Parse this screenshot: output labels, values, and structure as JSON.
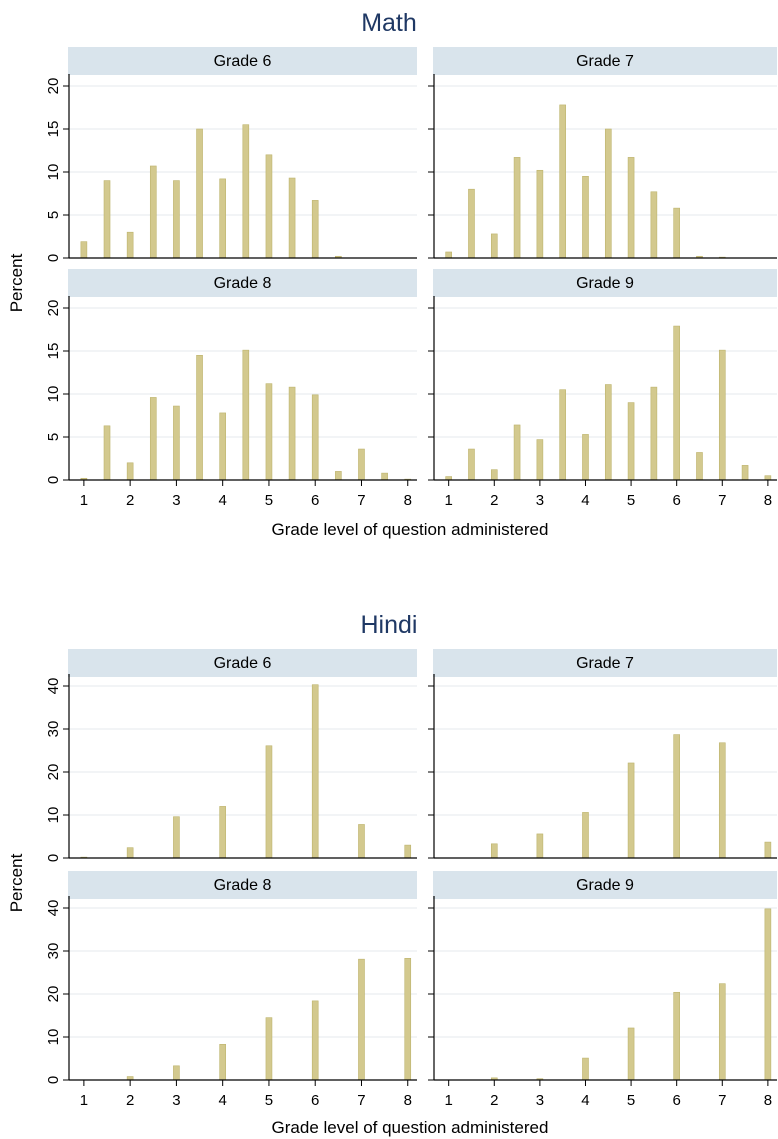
{
  "chart_data": [
    {
      "type": "bar",
      "title": "Math",
      "xlabel": "Grade level of question administered",
      "ylabel": "Percent",
      "ylim": [
        0,
        20
      ],
      "yticks": [
        0,
        5,
        10,
        15,
        20
      ],
      "xticks": [
        1,
        2,
        3,
        4,
        5,
        6,
        7,
        8
      ],
      "x": [
        1,
        1.5,
        2,
        2.5,
        3,
        3.5,
        4,
        4.5,
        5,
        5.5,
        6,
        6.5,
        7,
        7.5,
        8
      ],
      "grid": true,
      "series": [
        {
          "name": "Grade 6",
          "values": [
            1.9,
            9.0,
            3.0,
            10.7,
            9.0,
            15.0,
            9.2,
            15.5,
            12.0,
            9.3,
            6.7,
            0.2,
            0.0,
            0.0,
            0.0
          ]
        },
        {
          "name": "Grade 7",
          "values": [
            0.7,
            8.0,
            2.8,
            11.7,
            10.2,
            17.8,
            9.5,
            15.0,
            11.7,
            7.7,
            5.8,
            0.2,
            0.1,
            0.0,
            0.0
          ]
        },
        {
          "name": "Grade 8",
          "values": [
            0.2,
            6.3,
            2.0,
            9.6,
            8.6,
            14.5,
            7.8,
            15.1,
            11.2,
            10.8,
            9.9,
            1.0,
            3.6,
            0.8,
            0.1
          ]
        },
        {
          "name": "Grade 9",
          "values": [
            0.4,
            3.6,
            1.2,
            6.4,
            4.7,
            10.5,
            5.3,
            11.1,
            9.0,
            10.8,
            17.9,
            3.2,
            15.1,
            1.7,
            0.5
          ]
        }
      ]
    },
    {
      "type": "bar",
      "title": "Hindi",
      "xlabel": "Grade level of question administered",
      "ylabel": "Percent",
      "ylim": [
        0,
        40
      ],
      "yticks": [
        0,
        10,
        20,
        30,
        40
      ],
      "xticks": [
        1,
        2,
        3,
        4,
        5,
        6,
        7,
        8
      ],
      "x": [
        1,
        2,
        3,
        4,
        5,
        6,
        7,
        8
      ],
      "grid": true,
      "series": [
        {
          "name": "Grade 6",
          "values": [
            0.2,
            2.4,
            9.6,
            12.0,
            26.1,
            40.3,
            7.8,
            3.0
          ]
        },
        {
          "name": "Grade 7",
          "values": [
            0.0,
            3.3,
            5.6,
            10.6,
            22.1,
            28.7,
            26.8,
            3.7
          ]
        },
        {
          "name": "Grade 8",
          "values": [
            0.0,
            0.8,
            3.3,
            8.3,
            14.5,
            18.4,
            28.1,
            28.3
          ]
        },
        {
          "name": "Grade 9",
          "values": [
            0.0,
            0.5,
            0.3,
            5.1,
            12.1,
            20.4,
            22.4,
            39.8
          ]
        }
      ]
    }
  ],
  "colors": {
    "bar_fill": "#d3c98e",
    "bar_stroke": "#bdb36c",
    "strip_fill": "#d9e4ec",
    "grid": "#e4e9ec",
    "title": "#1f3864",
    "text": "#000000"
  }
}
